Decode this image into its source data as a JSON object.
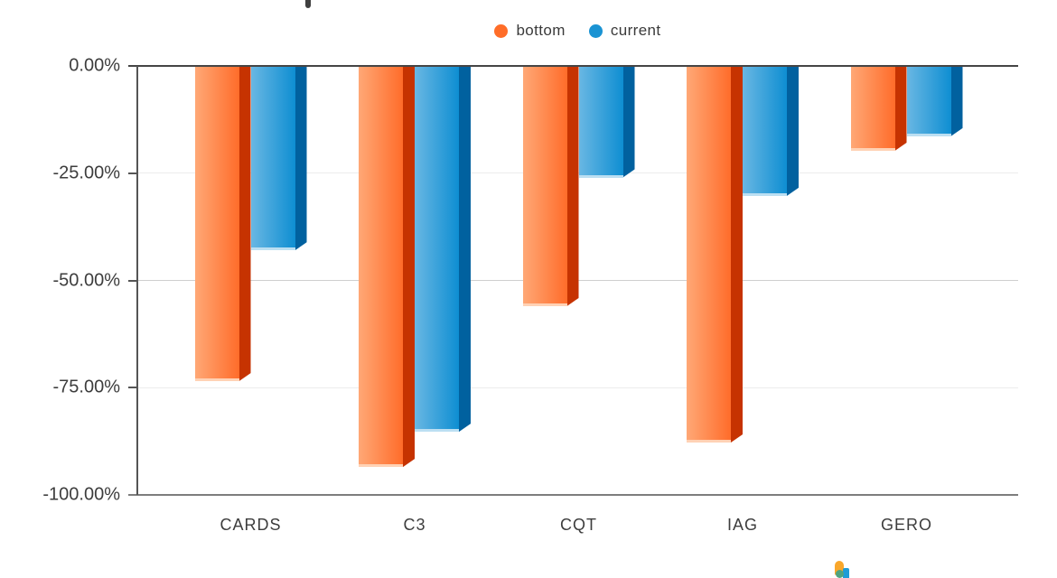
{
  "legend": {
    "items": [
      {
        "label": "bottom",
        "color": "#FF6D28"
      },
      {
        "label": "current",
        "color": "#1A93D3"
      }
    ]
  },
  "chart_data": {
    "type": "bar",
    "categories": [
      "CARDS",
      "C3",
      "CQT",
      "IAG",
      "GERO"
    ],
    "series": [
      {
        "name": "bottom",
        "values": [
          -73.5,
          -93.5,
          -56.0,
          -87.8,
          -19.8
        ],
        "color_light": "#FFA876",
        "color_main": "#FF6C2A",
        "color_side": "#C63301",
        "color_edge": "#FFD2B5"
      },
      {
        "name": "current",
        "values": [
          -43.0,
          -85.3,
          -26.0,
          -30.3,
          -16.4
        ],
        "color_light": "#69B7E3",
        "color_main": "#0E8ED2",
        "color_side": "#01619F",
        "color_edge": "#BCDFF2"
      }
    ],
    "yticks": [
      {
        "value": 0,
        "label": "0.00%"
      },
      {
        "value": -25,
        "label": "-25.00%"
      },
      {
        "value": -50,
        "label": "-50.00%"
      },
      {
        "value": -75,
        "label": "-75.00%"
      },
      {
        "value": -100,
        "label": "-100.00%"
      }
    ],
    "ylim": [
      -100,
      0
    ],
    "grid": "horizontal",
    "legend_position": "top-center"
  },
  "watermark_logo": {
    "orange": "#F9A72B",
    "teal": "#4FA480",
    "blue": "#1E9CD7"
  }
}
